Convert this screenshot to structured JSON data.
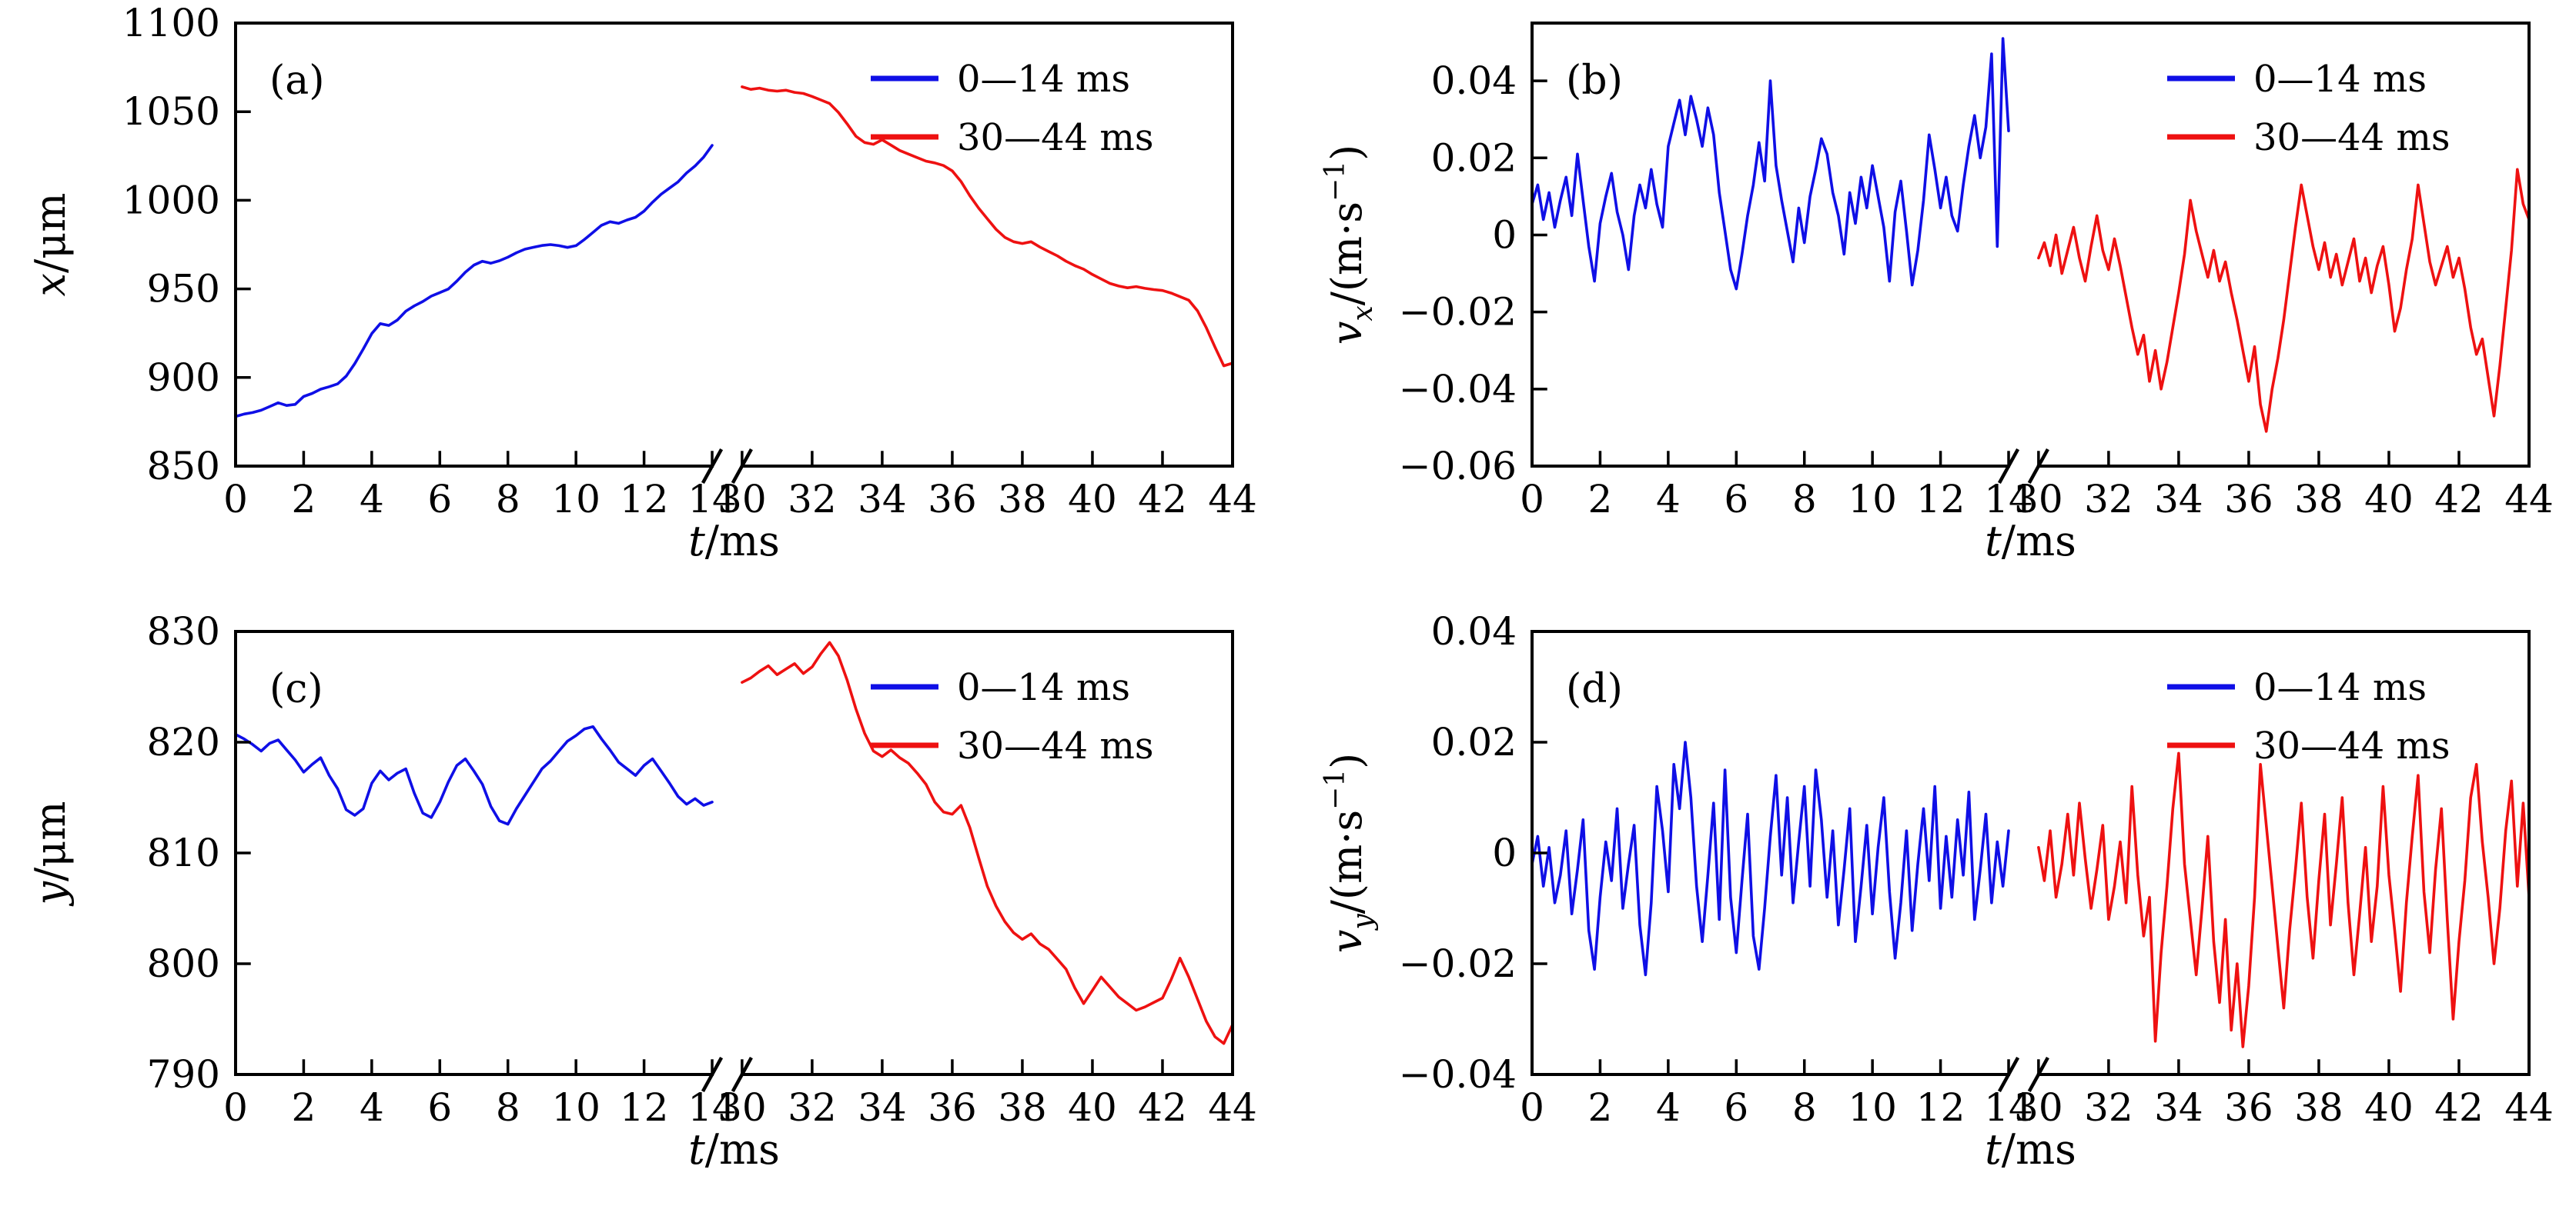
{
  "figure": {
    "background": "#ffffff",
    "description": "Particle position and velocity time series with broken time axis"
  },
  "colors": {
    "axis": "#000000",
    "text": "#000000",
    "series": [
      "#0f0fe6",
      "#ee1111"
    ]
  },
  "legend": {
    "items": [
      {
        "label": "0—14 ms"
      },
      {
        "label": "30—44 ms"
      }
    ]
  },
  "xaxis": {
    "label_var": "t",
    "label_unit": "/ms",
    "left_range": [
      0,
      14
    ],
    "right_range": [
      30,
      44
    ],
    "left_ticks": [
      "0",
      "2",
      "4",
      "6",
      "8",
      "10",
      "12",
      "14"
    ],
    "right_ticks": [
      "30",
      "32",
      "34",
      "36",
      "38",
      "40",
      "42",
      "44"
    ]
  },
  "chart_data": {
    "type": "line",
    "panels": [
      {
        "id": "a",
        "letter": "(a)",
        "ylabel": {
          "var": "x",
          "sub": "",
          "pre": "/μm",
          "sup": "",
          "post": ""
        },
        "yrange": [
          850,
          1100
        ],
        "yticks": [
          {
            "v": 1100,
            "label": "1100"
          },
          {
            "v": 1050,
            "label": "1050"
          },
          {
            "v": 1000,
            "label": "1000"
          },
          {
            "v": 950,
            "label": "950"
          },
          {
            "v": 900,
            "label": "900"
          },
          {
            "v": 850,
            "label": "850"
          }
        ],
        "series": [
          {
            "name": "0—14 ms",
            "t_start": 0,
            "t_end": 14,
            "scale": 1,
            "values": [
              878.0,
              879.4,
              880.2,
              881.5,
              883.6,
              885.7,
              884.2,
              884.8,
              889.3,
              891.0,
              893.4,
              894.8,
              896.4,
              900.8,
              907.8,
              916.0,
              924.8,
              930.4,
              929.4,
              932.4,
              937.4,
              940.4,
              942.9,
              945.9,
              947.9,
              949.9,
              954.4,
              959.4,
              963.4,
              965.6,
              964.5,
              965.9,
              967.9,
              970.4,
              972.4,
              973.5,
              974.5,
              975.0,
              974.4,
              973.4,
              974.4,
              977.9,
              981.9,
              985.9,
              987.9,
              987.0,
              988.9,
              990.4,
              993.9,
              998.9,
              1003.4,
              1006.9,
              1010.4,
              1015.4,
              1019.4,
              1024.4,
              1031.0
            ]
          },
          {
            "name": "30—44 ms",
            "t_start": 30,
            "t_end": 44,
            "scale": 1,
            "values": [
              1064.0,
              1062.6,
              1063.3,
              1062.1,
              1061.6,
              1062.1,
              1060.9,
              1060.3,
              1058.6,
              1056.6,
              1054.6,
              1049.6,
              1043.1,
              1036.1,
              1032.6,
              1031.6,
              1034.1,
              1031.1,
              1028.1,
              1026.1,
              1024.1,
              1022.1,
              1021.1,
              1019.6,
              1016.6,
              1010.6,
              1002.6,
              995.6,
              989.6,
              983.6,
              979.1,
              976.6,
              975.6,
              976.6,
              973.6,
              971.1,
              968.6,
              965.6,
              963.1,
              961.1,
              958.1,
              955.6,
              953.1,
              951.6,
              950.6,
              951.3,
              950.3,
              949.6,
              949.1,
              947.6,
              945.6,
              943.6,
              937.6,
              928.1,
              917.1,
              906.6,
              908.1
            ]
          }
        ]
      },
      {
        "id": "b",
        "letter": "(b)",
        "ylabel": {
          "var": "v",
          "sub": "x",
          "pre": "/(m·s",
          "sup": "−1",
          "post": ")"
        },
        "yrange": [
          -0.06,
          0.055
        ],
        "yticks": [
          {
            "v": 0.04,
            "label": "0.04"
          },
          {
            "v": 0.02,
            "label": "0.02"
          },
          {
            "v": 0,
            "label": "0"
          },
          {
            "v": -0.02,
            "label": "−0.02"
          },
          {
            "v": -0.04,
            "label": "−0.04"
          },
          {
            "v": -0.06,
            "label": "−0.06"
          }
        ],
        "series": [
          {
            "name": "0—14 ms",
            "t_start": 0,
            "t_end": 14,
            "scale": 0.001,
            "values": [
              8,
              13,
              4,
              11,
              2,
              9,
              15,
              5,
              21,
              9,
              -3,
              -12,
              3,
              10,
              16,
              6,
              0,
              -9,
              5,
              13,
              7,
              17,
              8,
              2,
              23,
              29,
              35,
              26,
              36,
              30,
              23,
              33,
              26,
              11,
              1,
              -9,
              -14,
              -5,
              5,
              13,
              24,
              14,
              40,
              18,
              9,
              1,
              -7,
              7,
              -2,
              10,
              17,
              25,
              21,
              11,
              5,
              -5,
              11,
              3,
              15,
              7,
              18,
              10,
              2,
              -12,
              6,
              14,
              1,
              -13,
              -4,
              9,
              26,
              17,
              7,
              15,
              5,
              1,
              13,
              23,
              31,
              20,
              28,
              47,
              -3,
              51,
              27
            ]
          },
          {
            "name": "30—44 ms",
            "t_start": 30,
            "t_end": 44,
            "scale": 0.001,
            "values": [
              -6,
              -2,
              -8,
              0,
              -10,
              -4,
              2,
              -6,
              -12,
              -3,
              5,
              -4,
              -9,
              -1,
              -8,
              -16,
              -24,
              -31,
              -26,
              -38,
              -30,
              -40,
              -33,
              -24,
              -15,
              -5,
              9,
              1,
              -5,
              -11,
              -4,
              -12,
              -7,
              -15,
              -22,
              -30,
              -38,
              -29,
              -44,
              -51,
              -40,
              -32,
              -22,
              -10,
              2,
              13,
              5,
              -3,
              -9,
              -2,
              -11,
              -5,
              -13,
              -7,
              -1,
              -12,
              -6,
              -15,
              -8,
              -3,
              -13,
              -25,
              -19,
              -9,
              -1,
              13,
              3,
              -7,
              -13,
              -8,
              -3,
              -11,
              -6,
              -14,
              -24,
              -31,
              -27,
              -37,
              -47,
              -34,
              -19,
              -4,
              17,
              8,
              4
            ]
          }
        ]
      },
      {
        "id": "c",
        "letter": "(c)",
        "ylabel": {
          "var": "y",
          "sub": "",
          "pre": "/μm",
          "sup": "",
          "post": ""
        },
        "yrange": [
          790,
          830
        ],
        "yticks": [
          {
            "v": 830,
            "label": "830"
          },
          {
            "v": 820,
            "label": "820"
          },
          {
            "v": 810,
            "label": "810"
          },
          {
            "v": 800,
            "label": "800"
          },
          {
            "v": 790,
            "label": "790"
          }
        ],
        "series": [
          {
            "name": "0—14 ms",
            "t_start": 0,
            "t_end": 14,
            "scale": 1,
            "values": [
              820.7,
              820.3,
              819.8,
              819.2,
              819.9,
              820.2,
              819.3,
              818.4,
              817.3,
              818.0,
              818.6,
              817.0,
              815.8,
              813.9,
              813.4,
              814.0,
              816.3,
              817.4,
              816.6,
              817.2,
              817.6,
              815.4,
              813.6,
              813.2,
              814.6,
              816.4,
              817.9,
              818.5,
              817.4,
              816.2,
              814.2,
              812.9,
              812.6,
              814.0,
              815.2,
              816.4,
              817.6,
              818.3,
              819.2,
              820.1,
              820.6,
              821.2,
              821.4,
              820.3,
              819.3,
              818.2,
              817.6,
              817.0,
              817.9,
              818.5,
              817.4,
              816.3,
              815.1,
              814.4,
              814.9,
              814.3,
              814.6
            ]
          },
          {
            "name": "30—44 ms",
            "t_start": 30,
            "t_end": 44,
            "scale": 1,
            "values": [
              825.4,
              825.8,
              826.4,
              826.9,
              826.1,
              826.6,
              827.1,
              826.2,
              826.8,
              828.0,
              829.0,
              827.8,
              825.6,
              823.0,
              820.8,
              819.2,
              818.7,
              819.3,
              818.6,
              818.1,
              817.2,
              816.2,
              814.6,
              813.7,
              813.5,
              814.3,
              812.3,
              809.6,
              807.0,
              805.2,
              803.8,
              802.8,
              802.2,
              802.7,
              801.8,
              801.3,
              800.4,
              799.5,
              797.8,
              796.4,
              797.6,
              798.8,
              797.9,
              797.0,
              796.4,
              795.8,
              796.1,
              796.5,
              796.9,
              798.6,
              800.5,
              798.8,
              796.8,
              794.8,
              793.4,
              792.8,
              794.5
            ]
          }
        ]
      },
      {
        "id": "d",
        "letter": "(d)",
        "ylabel": {
          "var": "v",
          "sub": "y",
          "pre": "/(m·s",
          "sup": "−1",
          "post": ")"
        },
        "yrange": [
          -0.04,
          0.04
        ],
        "yticks": [
          {
            "v": 0.04,
            "label": "0.04"
          },
          {
            "v": 0.02,
            "label": "0.02"
          },
          {
            "v": 0,
            "label": "0"
          },
          {
            "v": -0.02,
            "label": "−0.02"
          },
          {
            "v": -0.04,
            "label": "−0.04"
          }
        ],
        "series": [
          {
            "name": "0—14 ms",
            "t_start": 0,
            "t_end": 14,
            "scale": 0.001,
            "values": [
              -2,
              3,
              -6,
              1,
              -9,
              -4,
              4,
              -11,
              -3,
              6,
              -14,
              -21,
              -8,
              2,
              -5,
              8,
              -10,
              -2,
              5,
              -13,
              -22,
              -9,
              12,
              4,
              -7,
              16,
              8,
              20,
              10,
              -6,
              -16,
              -4,
              9,
              -12,
              15,
              -8,
              -18,
              -5,
              7,
              -15,
              -21,
              -10,
              3,
              14,
              -4,
              10,
              -9,
              2,
              12,
              -6,
              15,
              6,
              -8,
              4,
              -13,
              -3,
              8,
              -16,
              -6,
              5,
              -11,
              1,
              10,
              -7,
              -19,
              -9,
              4,
              -14,
              -2,
              8,
              -5,
              12,
              -10,
              3,
              -8,
              6,
              -4,
              11,
              -12,
              -3,
              7,
              -9,
              2,
              -6,
              4
            ]
          },
          {
            "name": "30—44 ms",
            "t_start": 30,
            "t_end": 44,
            "scale": 0.001,
            "values": [
              1,
              -5,
              4,
              -8,
              -2,
              7,
              -4,
              9,
              -1,
              -10,
              -3,
              5,
              -12,
              -6,
              2,
              -9,
              12,
              -4,
              -15,
              -8,
              -34,
              -18,
              -6,
              8,
              18,
              -2,
              -12,
              -22,
              -10,
              3,
              -16,
              -27,
              -12,
              -32,
              -20,
              -35,
              -24,
              -8,
              16,
              5,
              -6,
              -17,
              -28,
              -14,
              -3,
              9,
              -8,
              -19,
              -5,
              7,
              -13,
              -2,
              10,
              -9,
              -22,
              -11,
              1,
              -16,
              -6,
              12,
              -4,
              -14,
              -25,
              -9,
              3,
              14,
              -7,
              -18,
              -3,
              8,
              -12,
              -30,
              -16,
              -5,
              10,
              16,
              2,
              -8,
              -20,
              -10,
              4,
              13,
              -6,
              9,
              -8
            ]
          }
        ]
      }
    ]
  }
}
